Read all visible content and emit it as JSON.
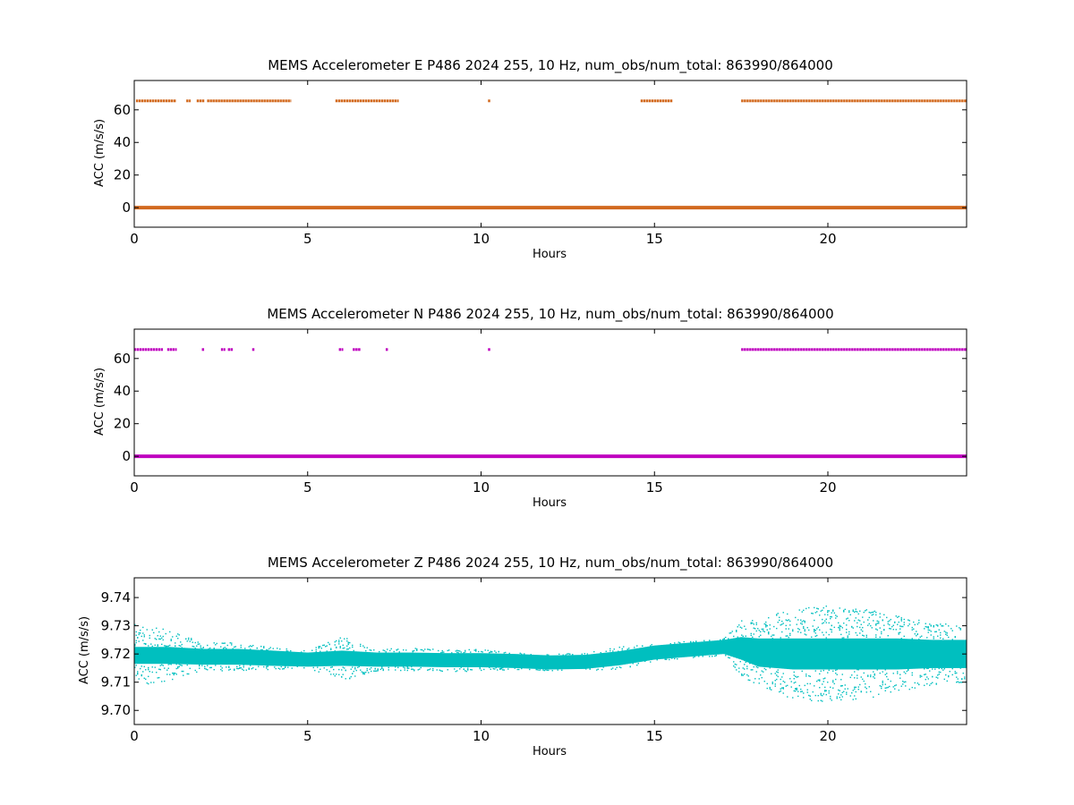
{
  "chart_data": [
    {
      "type": "scatter",
      "title": "MEMS Accelerometer E P486 2024 255, 10 Hz, num_obs/num_total: 863990/864000",
      "xlabel": "Hours",
      "ylabel": "ACC (m/s/s)",
      "xlim": [
        0,
        24
      ],
      "ylim": [
        -12,
        78
      ],
      "xticks": [
        "0",
        "5",
        "10",
        "15",
        "20"
      ],
      "yticks": [
        "0",
        "20",
        "40",
        "60"
      ],
      "grid": false,
      "color": "#d2691e",
      "series": [
        {
          "description_level": 0,
          "y": 0,
          "x_ranges": [
            [
              0,
              24
            ]
          ]
        },
        {
          "y": 65.5,
          "x_ranges": [
            [
              0.05,
              1.2
            ],
            [
              1.5,
              1.6
            ],
            [
              1.8,
              2.0
            ],
            [
              2.1,
              4.5
            ],
            [
              5.8,
              7.6
            ],
            [
              10.2,
              10.25
            ],
            [
              14.6,
              15.5
            ],
            [
              17.5,
              24
            ]
          ]
        }
      ]
    },
    {
      "type": "scatter",
      "title": "MEMS Accelerometer N P486 2024 255, 10 Hz, num_obs/num_total: 863990/864000",
      "xlabel": "Hours",
      "ylabel": "ACC (m/s/s)",
      "xlim": [
        0,
        24
      ],
      "ylim": [
        -12,
        78
      ],
      "xticks": [
        "0",
        "5",
        "10",
        "15",
        "20"
      ],
      "yticks": [
        "0",
        "20",
        "40",
        "60"
      ],
      "grid": false,
      "color": "#bf00bf",
      "series": [
        {
          "y": 0,
          "x_ranges": [
            [
              0,
              24
            ]
          ]
        },
        {
          "y": 65.5,
          "x_ranges": [
            [
              0,
              0.8
            ],
            [
              0.95,
              1.2
            ],
            [
              1.95,
              2.0
            ],
            [
              2.5,
              2.6
            ],
            [
              2.7,
              2.85
            ],
            [
              3.4,
              3.45
            ],
            [
              5.9,
              6.0
            ],
            [
              6.3,
              6.5
            ],
            [
              7.25,
              7.3
            ],
            [
              10.2,
              10.25
            ],
            [
              17.5,
              24
            ]
          ]
        }
      ]
    },
    {
      "type": "scatter",
      "title": "MEMS Accelerometer Z P486 2024 255, 10 Hz, num_obs/num_total: 863990/864000",
      "xlabel": "Hours",
      "ylabel": "ACC (m/s/s)",
      "xlim": [
        0,
        24
      ],
      "ylim": [
        9.695,
        9.747
      ],
      "xticks": [
        "0",
        "5",
        "10",
        "15",
        "20"
      ],
      "yticks": [
        "9.70",
        "9.71",
        "9.72",
        "9.73",
        "9.74"
      ],
      "grid": false,
      "color": "#00bfbf",
      "band": {
        "x": [
          0,
          1,
          2,
          3,
          4,
          5,
          6,
          7,
          8,
          9,
          10,
          11,
          12,
          13,
          14,
          15,
          16,
          17,
          17.5,
          18,
          19,
          20,
          21,
          22,
          23,
          24
        ],
        "center": [
          9.7195,
          9.7195,
          9.719,
          9.719,
          9.7185,
          9.718,
          9.7185,
          9.718,
          9.718,
          9.7178,
          9.7178,
          9.7175,
          9.717,
          9.7172,
          9.7185,
          9.7205,
          9.7215,
          9.7225,
          9.722,
          9.7205,
          9.72,
          9.72,
          9.72,
          9.72,
          9.72,
          9.72
        ],
        "spread_dense": [
          0.003,
          0.003,
          0.0028,
          0.0028,
          0.0027,
          0.0025,
          0.0027,
          0.0025,
          0.0025,
          0.0025,
          0.0025,
          0.0025,
          0.0025,
          0.0025,
          0.0025,
          0.0025,
          0.0025,
          0.0025,
          0.004,
          0.005,
          0.0055,
          0.0055,
          0.0055,
          0.0055,
          0.005,
          0.005
        ],
        "spread_outlier": [
          0.011,
          0.009,
          0.005,
          0.005,
          0.004,
          0.003,
          0.008,
          0.004,
          0.004,
          0.004,
          0.004,
          0.003,
          0.003,
          0.003,
          0.004,
          0.003,
          0.003,
          0.003,
          0.01,
          0.012,
          0.016,
          0.017,
          0.016,
          0.014,
          0.011,
          0.01
        ]
      }
    }
  ]
}
